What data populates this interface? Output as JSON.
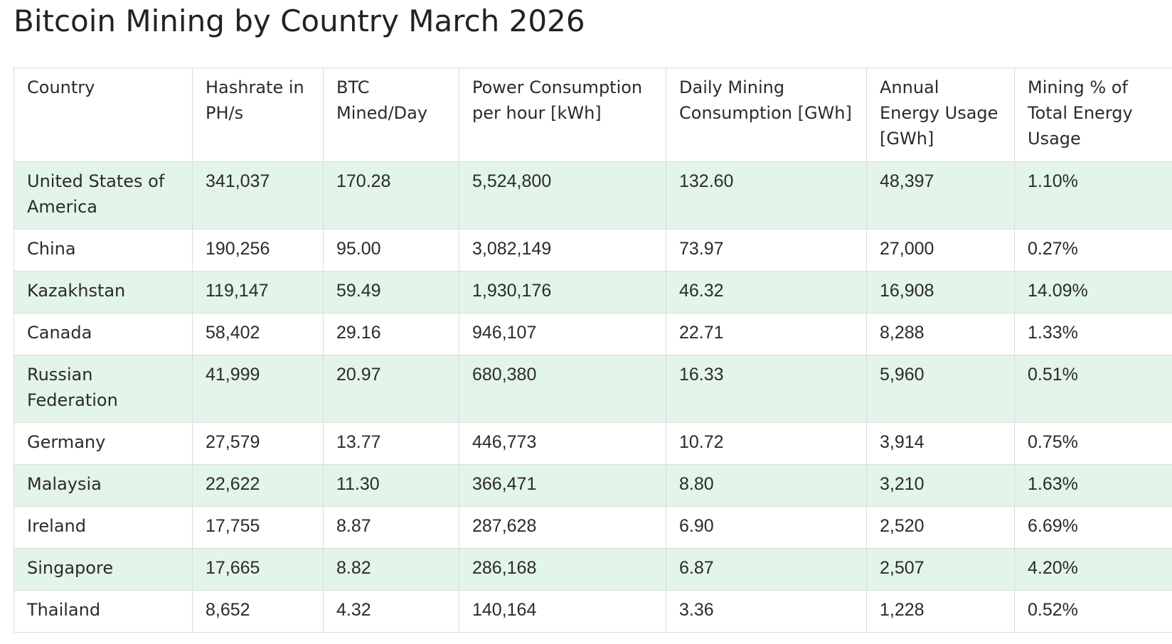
{
  "page": {
    "title": "Bitcoin Mining by Country March 2026"
  },
  "table": {
    "headers": [
      "Country",
      "Hashrate in PH/s",
      "BTC Mined/Day",
      "Power Consumption per hour [kWh]",
      "Daily Mining Consumption [GWh]",
      "Annual Energy Usage [GWh]",
      "Mining % of Total Energy Usage"
    ],
    "rows": [
      [
        "United States of America",
        "341,037",
        "170.28",
        "5,524,800",
        "132.60",
        "48,397",
        "1.10%"
      ],
      [
        "China",
        "190,256",
        "95.00",
        "3,082,149",
        "73.97",
        "27,000",
        "0.27%"
      ],
      [
        "Kazakhstan",
        "119,147",
        "59.49",
        "1,930,176",
        "46.32",
        "16,908",
        "14.09%"
      ],
      [
        "Canada",
        "58,402",
        "29.16",
        "946,107",
        "22.71",
        "8,288",
        "1.33%"
      ],
      [
        "Russian Federation",
        "41,999",
        "20.97",
        "680,380",
        "16.33",
        "5,960",
        "0.51%"
      ],
      [
        "Germany",
        "27,579",
        "13.77",
        "446,773",
        "10.72",
        "3,914",
        "0.75%"
      ],
      [
        "Malaysia",
        "22,622",
        "11.30",
        "366,471",
        "8.80",
        "3,210",
        "1.63%"
      ],
      [
        "Ireland",
        "17,755",
        "8.87",
        "287,628",
        "6.90",
        "2,520",
        "6.69%"
      ],
      [
        "Singapore",
        "17,665",
        "8.82",
        "286,168",
        "6.87",
        "2,507",
        "4.20%"
      ],
      [
        "Thailand",
        "8,652",
        "4.32",
        "140,164",
        "3.36",
        "1,228",
        "0.52%"
      ]
    ]
  },
  "colors": {
    "row_stripe": "#e3f4e8",
    "border": "#dcdcdc",
    "text": "#2b2b2b"
  }
}
